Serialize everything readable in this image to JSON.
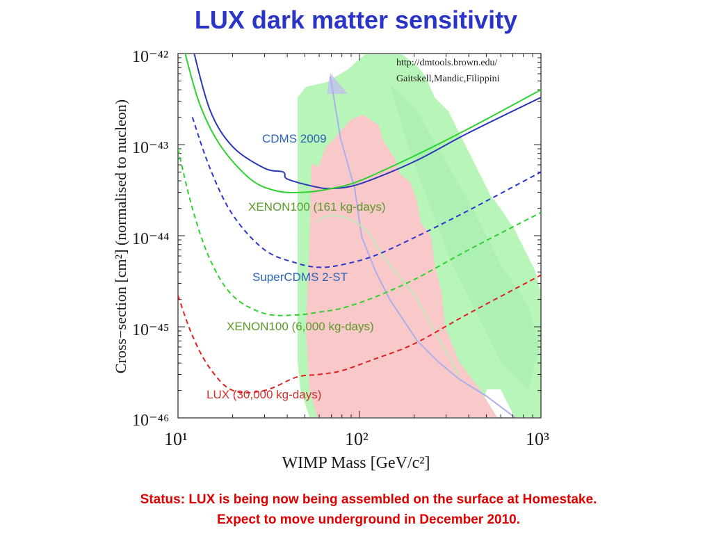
{
  "slide": {
    "title": "LUX dark matter sensitivity",
    "status_line1": "Status: LUX is being now being assembled on the surface at Homestake.",
    "status_line2": "Expect to move underground in December 2010."
  },
  "chart_data": {
    "type": "line",
    "title": "",
    "xlabel": "WIMP Mass [GeV/c²]",
    "ylabel": "Cross−section [cm²] (normalised to nucleon)",
    "xscale": "log",
    "yscale": "log",
    "xlim": [
      10,
      1000
    ],
    "ylim": [
      1e-46,
      1e-42
    ],
    "x_tick_labels": [
      "10¹",
      "10²",
      "10³"
    ],
    "y_tick_labels": [
      "10⁻⁴²",
      "10⁻⁴³",
      "10⁻⁴⁴",
      "10⁻⁴⁵",
      "10⁻⁴⁶"
    ],
    "credit": [
      "http://dmtools.brown.edu/",
      "Gaitskell,Mandic,Filippini"
    ],
    "series": [
      {
        "name": "CDMS 2009",
        "style": "solid",
        "color": "#2b35b8",
        "label_color": "#2b64b8",
        "x": [
          12,
          15,
          20,
          30,
          38,
          40,
          55,
          70,
          100,
          200,
          400,
          1000
        ],
        "y": [
          1.2e-42,
          2.4e-43,
          9.5e-44,
          5.5e-44,
          5e-44,
          4.2e-44,
          3.5e-44,
          3.3e-44,
          3.7e-44,
          6.5e-44,
          1.35e-43,
          3.3e-43
        ]
      },
      {
        "name": "XENON100 (161 kg-days)",
        "style": "solid",
        "color": "#2ed12e",
        "label_color": "#5b9a2a",
        "x": [
          10.5,
          13,
          17,
          25,
          35,
          50,
          70,
          100,
          200,
          400,
          1000
        ],
        "y": [
          1.4e-42,
          3e-43,
          1e-43,
          4.2e-44,
          3.1e-44,
          3e-44,
          3.3e-44,
          4e-44,
          7.5e-44,
          1.5e-43,
          4e-43
        ]
      },
      {
        "name": "SuperCDMS 2-ST",
        "style": "dashed",
        "color": "#2b35d0",
        "label_color": "#2b64b8",
        "x": [
          12,
          15,
          20,
          30,
          45,
          60,
          80,
          120,
          200,
          400,
          1000
        ],
        "y": [
          2e-43,
          5.5e-44,
          1.7e-44,
          7e-45,
          5e-45,
          4.5e-45,
          4.8e-45,
          6e-45,
          9.5e-45,
          1.9e-44,
          5e-44
        ]
      },
      {
        "name": "XENON100 (6,000 kg-days)",
        "style": "dashed",
        "color": "#2ed12e",
        "label_color": "#5b9a2a",
        "x": [
          10,
          12,
          15,
          20,
          30,
          45,
          60,
          80,
          120,
          200,
          400,
          1000
        ],
        "y": [
          9e-44,
          2e-44,
          5.5e-45,
          2.2e-45,
          1.4e-45,
          1.35e-45,
          1.45e-45,
          1.6e-45,
          2.1e-45,
          3.3e-45,
          7e-45,
          1.8e-44
        ]
      },
      {
        "name": "LUX (30,000 kg-days)",
        "style": "dashed",
        "color": "#e02020",
        "label_color": "#d03030",
        "x": [
          10,
          12,
          15,
          20,
          30,
          45,
          60,
          80,
          120,
          200,
          400,
          1000
        ],
        "y": [
          2.2e-45,
          8e-46,
          3.5e-46,
          2e-46,
          2e-46,
          2.8e-46,
          3e-46,
          3.3e-46,
          4.4e-46,
          6.5e-46,
          1.4e-45,
          3.7e-45
        ]
      }
    ],
    "regions": [
      {
        "kind": "theory-green",
        "color": "#b8f5b8"
      },
      {
        "kind": "theory-pink",
        "color": "#f9c8c8"
      },
      {
        "kind": "theory-lavender",
        "color": "#c0c0ee"
      }
    ]
  }
}
